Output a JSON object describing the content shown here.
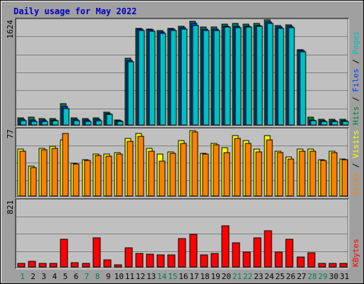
{
  "title": "Daily usage for May 2022",
  "colors": {
    "frame": "#a0a0a0",
    "plot_bg": "#c0c0c0",
    "grid": "#808080",
    "title": "#0000c0",
    "hits": "#008040",
    "files": "#0040ff",
    "pages": "#00c0c0",
    "visits": "#ffff00",
    "sites": "#ff8000",
    "kbytes": "#ff0000",
    "day_weekday": "#000000",
    "day_weekend": "#00805a"
  },
  "chart_data": [
    {
      "type": "bar",
      "panel": "top",
      "max_label": "1624",
      "ylim": [
        0,
        1624
      ],
      "categories": [
        "1",
        "2",
        "3",
        "4",
        "5",
        "6",
        "7",
        "8",
        "9",
        "10",
        "11",
        "12",
        "13",
        "14",
        "15",
        "16",
        "17",
        "18",
        "19",
        "20",
        "21",
        "22",
        "23",
        "24",
        "25",
        "26",
        "27",
        "28",
        "29",
        "30",
        "31"
      ],
      "weekend_days": [
        "1",
        "7",
        "8",
        "14",
        "15",
        "21",
        "22",
        "28",
        "29"
      ],
      "legend": [
        "Hits",
        "Files",
        "Pages"
      ],
      "series": [
        {
          "name": "Hits",
          "values": [
            110,
            120,
            100,
            100,
            330,
            110,
            100,
            110,
            200,
            80,
            1030,
            1490,
            1480,
            1460,
            1490,
            1520,
            1600,
            1510,
            1510,
            1560,
            1570,
            1560,
            1570,
            1620,
            1540,
            1550,
            1160,
            120,
            90,
            90,
            90
          ]
        },
        {
          "name": "Files",
          "values": [
            90,
            80,
            80,
            80,
            290,
            90,
            80,
            90,
            180,
            70,
            1000,
            1480,
            1470,
            1440,
            1480,
            1500,
            1570,
            1480,
            1480,
            1530,
            1530,
            1530,
            1540,
            1590,
            1510,
            1520,
            1150,
            80,
            70,
            70,
            70
          ]
        },
        {
          "name": "Pages",
          "values": [
            70,
            50,
            60,
            70,
            250,
            70,
            60,
            70,
            160,
            60,
            980,
            1460,
            1450,
            1420,
            1460,
            1480,
            1540,
            1460,
            1460,
            1510,
            1500,
            1510,
            1520,
            1570,
            1490,
            1500,
            1130,
            70,
            50,
            60,
            60
          ]
        }
      ]
    },
    {
      "type": "bar",
      "panel": "middle",
      "max_label": "77",
      "ylim": [
        0,
        77
      ],
      "categories": [
        "1",
        "2",
        "3",
        "4",
        "5",
        "6",
        "7",
        "8",
        "9",
        "10",
        "11",
        "12",
        "13",
        "14",
        "15",
        "16",
        "17",
        "18",
        "19",
        "20",
        "21",
        "22",
        "23",
        "24",
        "25",
        "26",
        "27",
        "28",
        "29",
        "30",
        "31"
      ],
      "legend": [
        "Sites",
        "Visits"
      ],
      "series": [
        {
          "name": "Visits",
          "values": [
            54,
            34,
            55,
            57,
            65,
            38,
            42,
            48,
            48,
            50,
            66,
            72,
            55,
            48,
            51,
            64,
            75,
            49,
            61,
            56,
            70,
            64,
            54,
            70,
            52,
            45,
            54,
            54,
            42,
            52,
            43
          ]
        },
        {
          "name": "Sites",
          "values": [
            52,
            33,
            53,
            55,
            72,
            37,
            41,
            47,
            46,
            48,
            63,
            69,
            52,
            40,
            49,
            61,
            74,
            48,
            59,
            50,
            66,
            61,
            51,
            65,
            50,
            43,
            52,
            52,
            41,
            50,
            42
          ]
        }
      ]
    },
    {
      "type": "bar",
      "panel": "bottom",
      "max_label": "821",
      "ylim": [
        0,
        821
      ],
      "categories": [
        "1",
        "2",
        "3",
        "4",
        "5",
        "6",
        "7",
        "8",
        "9",
        "10",
        "11",
        "12",
        "13",
        "14",
        "15",
        "16",
        "17",
        "18",
        "19",
        "20",
        "21",
        "22",
        "23",
        "24",
        "25",
        "26",
        "27",
        "28",
        "29",
        "30",
        "31"
      ],
      "legend": [
        "KBytes"
      ],
      "series": [
        {
          "name": "KBytes",
          "values": [
            40,
            70,
            45,
            45,
            340,
            55,
            40,
            360,
            85,
            30,
            235,
            165,
            160,
            145,
            150,
            350,
            400,
            150,
            170,
            505,
            300,
            185,
            355,
            445,
            180,
            340,
            120,
            175,
            40,
            45,
            40
          ]
        }
      ]
    }
  ]
}
